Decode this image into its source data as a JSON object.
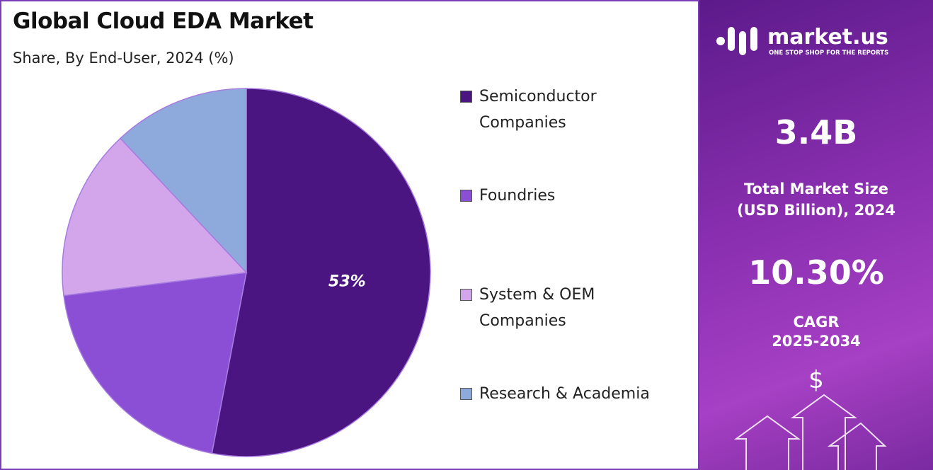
{
  "chart_data": {
    "type": "pie",
    "title": "Global Cloud EDA Market",
    "subtitle": "Share, By End-User, 2024 (%)",
    "categories": [
      "Semiconductor Companies",
      "Foundries",
      "System & OEM Companies",
      "Research & Academia"
    ],
    "values": [
      53,
      20,
      15,
      12
    ],
    "value_labels": [
      "53%",
      null,
      null,
      null
    ],
    "colors": [
      "#4b1581",
      "#8a4fd4",
      "#d3a6ec",
      "#8eaadc"
    ]
  },
  "side_panel": {
    "brand": "market.us",
    "tagline": "ONE STOP SHOP FOR THE REPORTS",
    "market_size": "3.4B",
    "market_size_label": [
      "Total Market Size",
      "(USD Billion), 2024"
    ],
    "cagr": "10.30%",
    "cagr_label": [
      "CAGR",
      "2025-2034"
    ]
  }
}
